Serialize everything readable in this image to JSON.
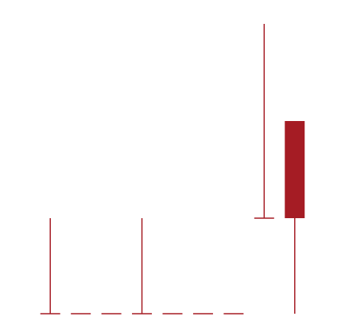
{
  "chart_data": {
    "type": "candlestick",
    "title": "",
    "xlabel": "",
    "ylabel": "",
    "grid": false,
    "legend": "none",
    "ylim": [
      0,
      400
    ],
    "color": "#a51c24",
    "candles": [
      {
        "open": 10,
        "high": 70,
        "low": 10,
        "close": 10
      },
      {
        "open": 10,
        "high": 10,
        "low": 10,
        "close": 10
      },
      {
        "open": 10,
        "high": 10,
        "low": 10,
        "close": 10
      },
      {
        "open": 10,
        "high": 70,
        "low": 10,
        "close": 10
      },
      {
        "open": 10,
        "high": 10,
        "low": 10,
        "close": 10
      },
      {
        "open": 10,
        "high": 10,
        "low": 10,
        "close": 10
      },
      {
        "open": 10,
        "high": 10,
        "low": 10,
        "close": 10
      },
      {
        "open": 70,
        "high": 192,
        "low": 70,
        "close": 70
      },
      {
        "open": 131,
        "high": 131,
        "low": 10,
        "close": 70
      }
    ]
  }
}
